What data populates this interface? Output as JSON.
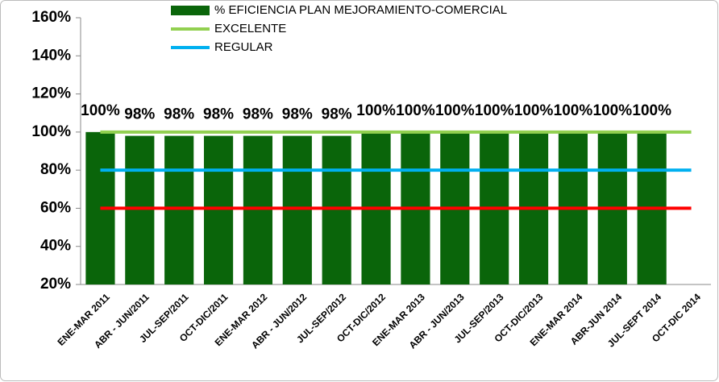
{
  "chart_data": {
    "type": "bar",
    "categories": [
      "ENE-MAR 2011",
      "ABR - JUN/2011",
      "JUL-SEP/2011",
      "OCT-DIC/2011",
      "ENE-MAR 2012",
      "ABR - JUN/2012",
      "JUL-SEP/2012",
      "OCT-DIC/2012",
      "ENE-MAR 2013",
      "ABR - JUN/2013",
      "JUL-SEP/2013",
      "OCT-DIC/2013",
      "ENE-MAR 2014",
      "ABR-JUN 2014",
      "JUL-SEPT 2014",
      "OCT-DIC 2014"
    ],
    "series": [
      {
        "name": "% EFICIENCIA PLAN MEJORAMIENTO-COMERCIAL",
        "type": "bar",
        "color": "#0a650a",
        "values": [
          100,
          98,
          98,
          98,
          98,
          98,
          98,
          100,
          100,
          100,
          100,
          100,
          100,
          100,
          100,
          null
        ],
        "value_labels": [
          "100%",
          "98%",
          "98%",
          "98%",
          "98%",
          "98%",
          "98%",
          "100%",
          "100%",
          "100%",
          "100%",
          "100%",
          "100%",
          "100%",
          "100%",
          null
        ]
      },
      {
        "name": "EXCELENTE",
        "type": "line",
        "color": "#92d050",
        "values": [
          100,
          100,
          100,
          100,
          100,
          100,
          100,
          100,
          100,
          100,
          100,
          100,
          100,
          100,
          100,
          100
        ]
      },
      {
        "name": "REGULAR",
        "type": "line",
        "color": "#00b0f0",
        "values": [
          80,
          80,
          80,
          80,
          80,
          80,
          80,
          80,
          80,
          80,
          80,
          80,
          80,
          80,
          80,
          80
        ]
      },
      {
        "type": "line",
        "color": "#ff0000",
        "values": [
          60,
          60,
          60,
          60,
          60,
          60,
          60,
          60,
          60,
          60,
          60,
          60,
          60,
          60,
          60,
          60
        ]
      }
    ],
    "ylim": [
      20,
      160
    ],
    "yticks": [
      {
        "value": 20,
        "label": "20%"
      },
      {
        "value": 40,
        "label": "40%"
      },
      {
        "value": 60,
        "label": "60%"
      },
      {
        "value": 80,
        "label": "80%"
      },
      {
        "value": 100,
        "label": "100%"
      },
      {
        "value": 120,
        "label": "120%"
      },
      {
        "value": 140,
        "label": "140%"
      },
      {
        "value": 160,
        "label": "160%"
      }
    ]
  }
}
